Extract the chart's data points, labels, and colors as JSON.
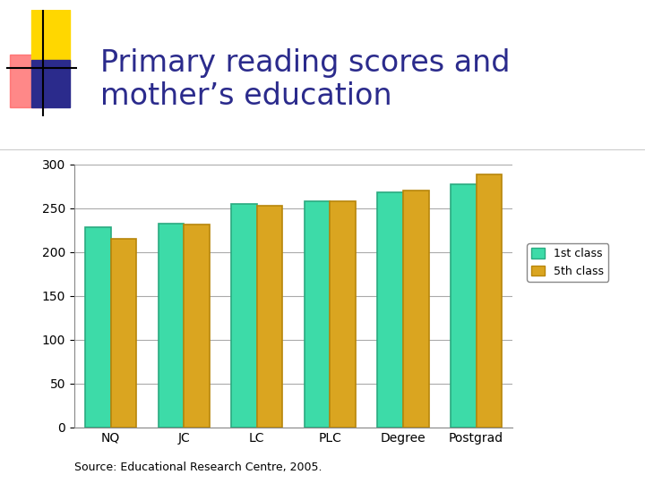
{
  "title": "Primary reading scores and\nmother’s education",
  "title_color": "#2B2B8C",
  "categories": [
    "NQ",
    "JC",
    "LC",
    "PLC",
    "Degree",
    "Postgrad"
  ],
  "series": [
    {
      "name": "1st class",
      "values": [
        228,
        232,
        255,
        258,
        268,
        277
      ],
      "color": "#3DDBA8",
      "edge_color": "#2AAA80"
    },
    {
      "name": "5th class",
      "values": [
        215,
        231,
        253,
        258,
        270,
        288
      ],
      "color": "#DAA520",
      "edge_color": "#B8860B"
    }
  ],
  "ylim": [
    0,
    300
  ],
  "yticks": [
    0,
    50,
    100,
    150,
    200,
    250,
    300
  ],
  "background_color": "#FFFFFF",
  "plot_bg_color": "#FFFFFF",
  "grid_color": "#AAAAAA",
  "source_text": "Source: Educational Research Centre, 2005.",
  "bar_width": 0.35,
  "legend_fontsize": 9,
  "tick_fontsize": 10,
  "title_fontsize": 24
}
